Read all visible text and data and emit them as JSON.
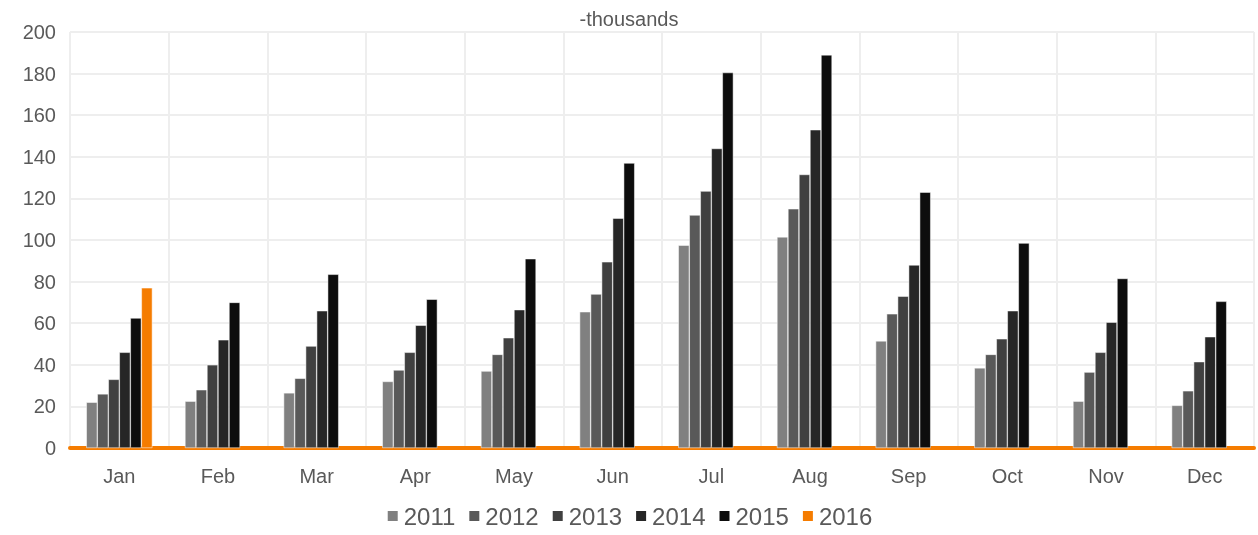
{
  "chart_data": {
    "type": "bar",
    "title": "-thousands",
    "categories": [
      "Jan",
      "Feb",
      "Mar",
      "Apr",
      "May",
      "Jun",
      "Jul",
      "Aug",
      "Sep",
      "Oct",
      "Nov",
      "Dec"
    ],
    "series": [
      {
        "name": "2011",
        "color": "#808080",
        "values": [
          22,
          22.5,
          26.5,
          32,
          37,
          65.5,
          97.5,
          101.5,
          51.5,
          38.5,
          22.5,
          20.5
        ]
      },
      {
        "name": "2012",
        "color": "#595959",
        "values": [
          26,
          28,
          33.5,
          37.5,
          45,
          74,
          112,
          115,
          64.5,
          45,
          36.5,
          27.5
        ]
      },
      {
        "name": "2013",
        "color": "#404040",
        "values": [
          33,
          40,
          49,
          46,
          53,
          89.5,
          123.5,
          131.5,
          73,
          52.5,
          46,
          41.5
        ]
      },
      {
        "name": "2014",
        "color": "#262626",
        "values": [
          46,
          52,
          66,
          59,
          66.5,
          110.5,
          144,
          153,
          88,
          66,
          60.5,
          53.5
        ]
      },
      {
        "name": "2015",
        "color": "#0d0d0d",
        "values": [
          62.5,
          70,
          83.5,
          71.5,
          91,
          137,
          180.5,
          189,
          123,
          98.5,
          81.5,
          70.5
        ]
      },
      {
        "name": "2016",
        "color": "#f57c00",
        "values": [
          77,
          null,
          null,
          null,
          null,
          null,
          null,
          null,
          null,
          null,
          null,
          null
        ]
      }
    ],
    "ylim": [
      0,
      200
    ],
    "yticks": [
      0,
      20,
      40,
      60,
      80,
      100,
      120,
      140,
      160,
      180,
      200
    ],
    "grid": true,
    "legend": "bottom"
  }
}
